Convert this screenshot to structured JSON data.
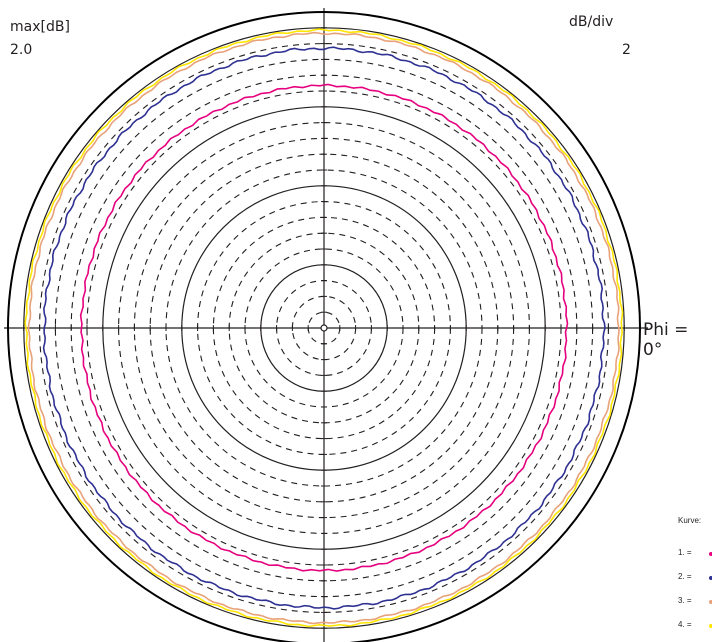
{
  "header": {
    "max_label": "max[dB]",
    "max_value": "2.0",
    "div_label": "dB/div",
    "div_value": "2"
  },
  "phi_label": "Phi = 0°",
  "legend": {
    "title": "Kurve:",
    "items": [
      {
        "label": "1. =",
        "color": "#e6007e"
      },
      {
        "label": "2. =",
        "color": "#2e3192"
      },
      {
        "label": "3. =",
        "color": "#e8a27a"
      },
      {
        "label": "4. =",
        "color": "#ffe600"
      }
    ]
  },
  "colors": {
    "grid_solid": "#231f20",
    "grid_dashed": "#231f20",
    "outer_circle": "#000000"
  },
  "chart_data": {
    "type": "polar",
    "r_max_db": 2.0,
    "db_per_div": 2,
    "r_min_db": -38.0,
    "solid_rings_db": [
      -30,
      -20,
      -10,
      0
    ],
    "dashed_rings_db": [
      -36,
      -34,
      -32,
      -28,
      -26,
      -24,
      -22,
      -18,
      -16,
      -14,
      -12,
      -8,
      -6,
      -4,
      -2
    ],
    "series": [
      {
        "name": "1.",
        "color": "#e6007e",
        "level_db": -7.3,
        "ripple_db": 0.15
      },
      {
        "name": "2.",
        "color": "#2e3192",
        "level_db": -2.6,
        "ripple_db": 0.2
      },
      {
        "name": "3.",
        "color": "#e8a27a",
        "level_db": -0.7,
        "ripple_db": 0.15
      },
      {
        "name": "4.",
        "color": "#ffe600",
        "level_db": -0.3,
        "ripple_db": 0.15
      }
    ]
  }
}
